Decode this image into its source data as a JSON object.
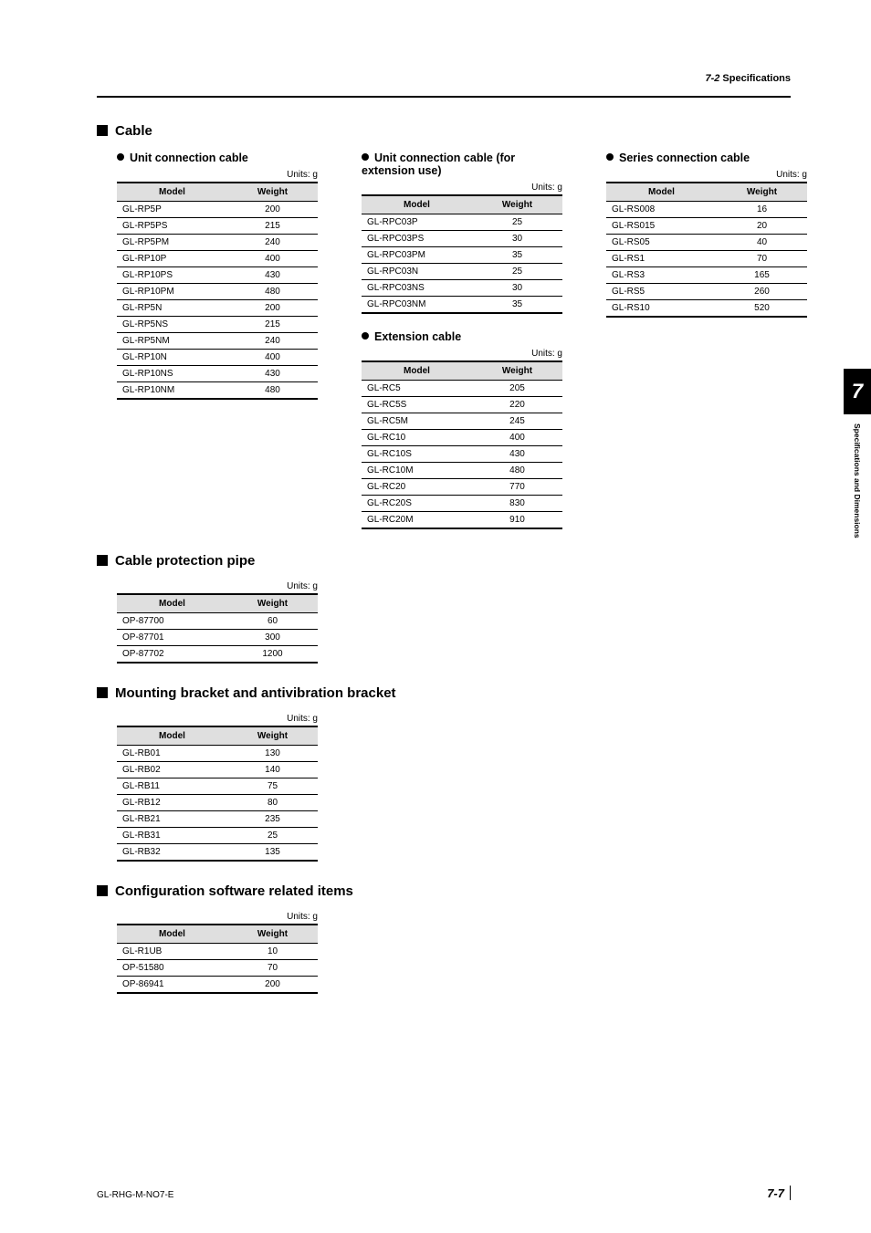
{
  "header": {
    "section_num": "7-2",
    "section_title": "Specifications"
  },
  "side_tab": {
    "chapter": "7",
    "title": "Specifications and Dimensions"
  },
  "footer": {
    "left": "GL-RHG-M-NO7-E",
    "page": "7-7"
  },
  "labels": {
    "model": "Model",
    "weight": "Weight",
    "units_g": "Units: g"
  },
  "sections": {
    "cable": {
      "title": "Cable",
      "unit_conn": {
        "title": "Unit connection cable",
        "rows": [
          [
            "GL-RP5P",
            "200"
          ],
          [
            "GL-RP5PS",
            "215"
          ],
          [
            "GL-RP5PM",
            "240"
          ],
          [
            "GL-RP10P",
            "400"
          ],
          [
            "GL-RP10PS",
            "430"
          ],
          [
            "GL-RP10PM",
            "480"
          ],
          [
            "GL-RP5N",
            "200"
          ],
          [
            "GL-RP5NS",
            "215"
          ],
          [
            "GL-RP5NM",
            "240"
          ],
          [
            "GL-RP10N",
            "400"
          ],
          [
            "GL-RP10NS",
            "430"
          ],
          [
            "GL-RP10NM",
            "480"
          ]
        ]
      },
      "unit_conn_ext": {
        "title": "Unit connection cable (for extension use)",
        "rows": [
          [
            "GL-RPC03P",
            "25"
          ],
          [
            "GL-RPC03PS",
            "30"
          ],
          [
            "GL-RPC03PM",
            "35"
          ],
          [
            "GL-RPC03N",
            "25"
          ],
          [
            "GL-RPC03NS",
            "30"
          ],
          [
            "GL-RPC03NM",
            "35"
          ]
        ]
      },
      "series_conn": {
        "title": "Series connection cable",
        "rows": [
          [
            "GL-RS008",
            "16"
          ],
          [
            "GL-RS015",
            "20"
          ],
          [
            "GL-RS05",
            "40"
          ],
          [
            "GL-RS1",
            "70"
          ],
          [
            "GL-RS3",
            "165"
          ],
          [
            "GL-RS5",
            "260"
          ],
          [
            "GL-RS10",
            "520"
          ]
        ]
      },
      "extension": {
        "title": "Extension cable",
        "rows": [
          [
            "GL-RC5",
            "205"
          ],
          [
            "GL-RC5S",
            "220"
          ],
          [
            "GL-RC5M",
            "245"
          ],
          [
            "GL-RC10",
            "400"
          ],
          [
            "GL-RC10S",
            "430"
          ],
          [
            "GL-RC10M",
            "480"
          ],
          [
            "GL-RC20",
            "770"
          ],
          [
            "GL-RC20S",
            "830"
          ],
          [
            "GL-RC20M",
            "910"
          ]
        ]
      }
    },
    "pipe": {
      "title": "Cable protection pipe",
      "rows": [
        [
          "OP-87700",
          "60"
        ],
        [
          "OP-87701",
          "300"
        ],
        [
          "OP-87702",
          "1200"
        ]
      ]
    },
    "bracket": {
      "title": "Mounting bracket and antivibration bracket",
      "rows": [
        [
          "GL-RB01",
          "130"
        ],
        [
          "GL-RB02",
          "140"
        ],
        [
          "GL-RB11",
          "75"
        ],
        [
          "GL-RB12",
          "80"
        ],
        [
          "GL-RB21",
          "235"
        ],
        [
          "GL-RB31",
          "25"
        ],
        [
          "GL-RB32",
          "135"
        ]
      ]
    },
    "config": {
      "title": "Configuration software related items",
      "rows": [
        [
          "GL-R1UB",
          "10"
        ],
        [
          "OP-51580",
          "70"
        ],
        [
          "OP-86941",
          "200"
        ]
      ]
    }
  }
}
